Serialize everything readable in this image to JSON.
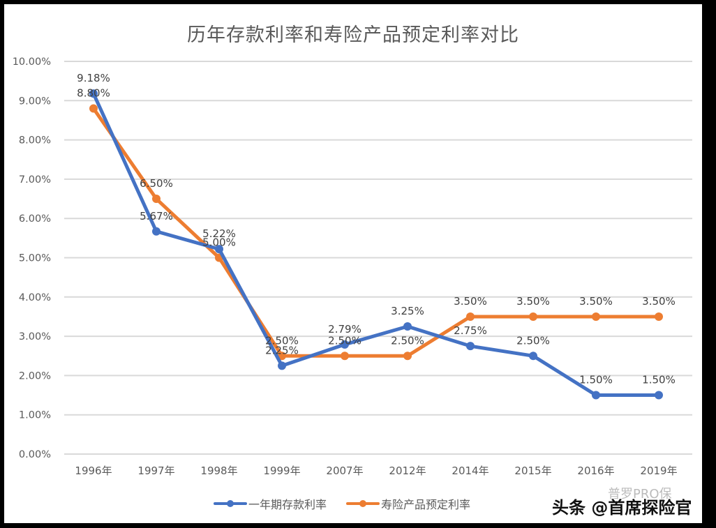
{
  "title": "历年存款利率和寿险产品预定利率对比",
  "watermark": "头条 @首席探险官",
  "watermark_faint": "普罗PRO保",
  "legend": [
    {
      "label": "一年期存款利率",
      "color": "#4472C4"
    },
    {
      "label": "寿险产品预定利率",
      "color": "#ED7D31"
    }
  ],
  "chart_data": {
    "type": "line",
    "title": "历年存款利率和寿险产品预定利率对比",
    "xlabel": "",
    "ylabel": "",
    "categories": [
      "1996年",
      "1997年",
      "1998年",
      "1999年",
      "2007年",
      "2012年",
      "2014年",
      "2015年",
      "2016年",
      "2019年"
    ],
    "series": [
      {
        "name": "一年期存款利率",
        "color": "#4472C4",
        "values": [
          9.18,
          5.67,
          5.22,
          2.25,
          2.79,
          3.25,
          2.75,
          2.5,
          1.5,
          1.5
        ],
        "labels": [
          "9.18%",
          "5.67%",
          "5.22%",
          "2.25%",
          "2.79%",
          "3.25%",
          "2.75%",
          "2.50%",
          "1.50%",
          "1.50%"
        ]
      },
      {
        "name": "寿险产品预定利率",
        "color": "#ED7D31",
        "values": [
          8.8,
          6.5,
          5.0,
          2.5,
          2.5,
          2.5,
          3.5,
          3.5,
          3.5,
          3.5
        ],
        "labels": [
          "8.80%",
          "6.50%",
          "5.00%",
          "2.50%",
          "2.50%",
          "2.50%",
          "3.50%",
          "3.50%",
          "3.50%",
          "3.50%"
        ]
      }
    ],
    "yticks": [
      "0.00%",
      "1.00%",
      "2.00%",
      "3.00%",
      "4.00%",
      "5.00%",
      "6.00%",
      "7.00%",
      "8.00%",
      "9.00%",
      "10.00%"
    ],
    "ylim": [
      0,
      10
    ],
    "grid": true,
    "legend_position": "bottom"
  }
}
